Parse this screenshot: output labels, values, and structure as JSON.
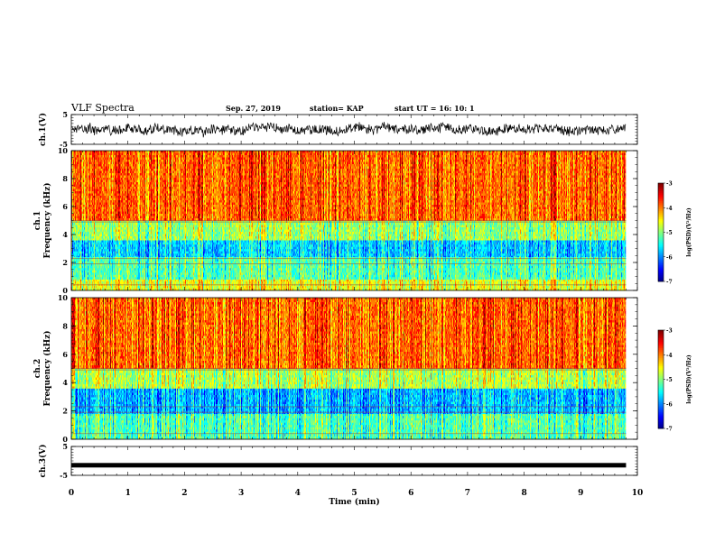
{
  "header": {
    "title": "VLF Spectra",
    "date": "Sep. 27, 2019",
    "station": "station= KAP",
    "start_ut": "start  UT  =   16: 10: 1"
  },
  "chart_data": [
    {
      "type": "line",
      "panel": "ch1-waveform",
      "ylabel": "ch.1(V)",
      "ylim": [
        -5,
        5
      ],
      "y_ticks": [
        "5",
        "-5"
      ],
      "xlim": [
        0,
        10
      ],
      "data_end_min": 9.8,
      "series_color": "#000000",
      "description_of_values": "noisy waveform fluctuating roughly between -3 and 3 V"
    },
    {
      "type": "heatmap",
      "panel": "ch1-spectrogram",
      "ylabel": "ch.1\nFrequency  (kHz)",
      "ylabel_line1": "ch.1",
      "ylabel_line2": "Frequency  (kHz)",
      "ylim": [
        0,
        10
      ],
      "y_ticks": [
        "0",
        "2",
        "4",
        "6",
        "8",
        "10"
      ],
      "xlim": [
        0,
        10
      ],
      "data_end_min": 9.8,
      "colorbar": {
        "ticks": [
          "-3",
          "-4",
          "-5",
          "-6",
          "-7"
        ],
        "label": "log(PSD)(V²/Hz)"
      },
      "bands": [
        {
          "from_khz": 0.0,
          "to_khz": 0.8,
          "level": -4.6
        },
        {
          "from_khz": 0.8,
          "to_khz": 2.4,
          "level": -5.2
        },
        {
          "from_khz": 2.4,
          "to_khz": 3.6,
          "level": -5.7
        },
        {
          "from_khz": 3.6,
          "to_khz": 5.0,
          "level": -4.9
        },
        {
          "from_khz": 5.0,
          "to_khz": 10.0,
          "level": -3.9
        }
      ]
    },
    {
      "type": "heatmap",
      "panel": "ch2-spectrogram",
      "ylabel": "ch.2\nFrequency  (kHz)",
      "ylabel_line1": "ch.2",
      "ylabel_line2": "Frequency  (kHz)",
      "ylim": [
        0,
        10
      ],
      "y_ticks": [
        "0",
        "2",
        "4",
        "6",
        "8",
        "10"
      ],
      "xlim": [
        0,
        10
      ],
      "data_end_min": 9.8,
      "colorbar": {
        "ticks": [
          "-3",
          "-4",
          "-5",
          "-6",
          "-7"
        ],
        "label": "log(PSD)(V²/Hz)"
      },
      "bands": [
        {
          "from_khz": 0.0,
          "to_khz": 1.8,
          "level": -5.2
        },
        {
          "from_khz": 1.8,
          "to_khz": 3.6,
          "level": -5.8
        },
        {
          "from_khz": 3.6,
          "to_khz": 5.0,
          "level": -4.8
        },
        {
          "from_khz": 5.0,
          "to_khz": 10.0,
          "level": -3.9
        }
      ]
    },
    {
      "type": "line",
      "panel": "ch3-waveform",
      "ylabel": "ch.3(V)",
      "ylim": [
        -5,
        5
      ],
      "y_ticks": [
        "5",
        "-5"
      ],
      "xlim": [
        0,
        10
      ],
      "data_end_min": 9.8,
      "constant_value": -1.5,
      "series_color": "#000000"
    }
  ],
  "x_axis": {
    "label": "Time  (min)",
    "ticks": [
      "0",
      "1",
      "2",
      "3",
      "4",
      "5",
      "6",
      "7",
      "8",
      "9",
      "10"
    ]
  }
}
